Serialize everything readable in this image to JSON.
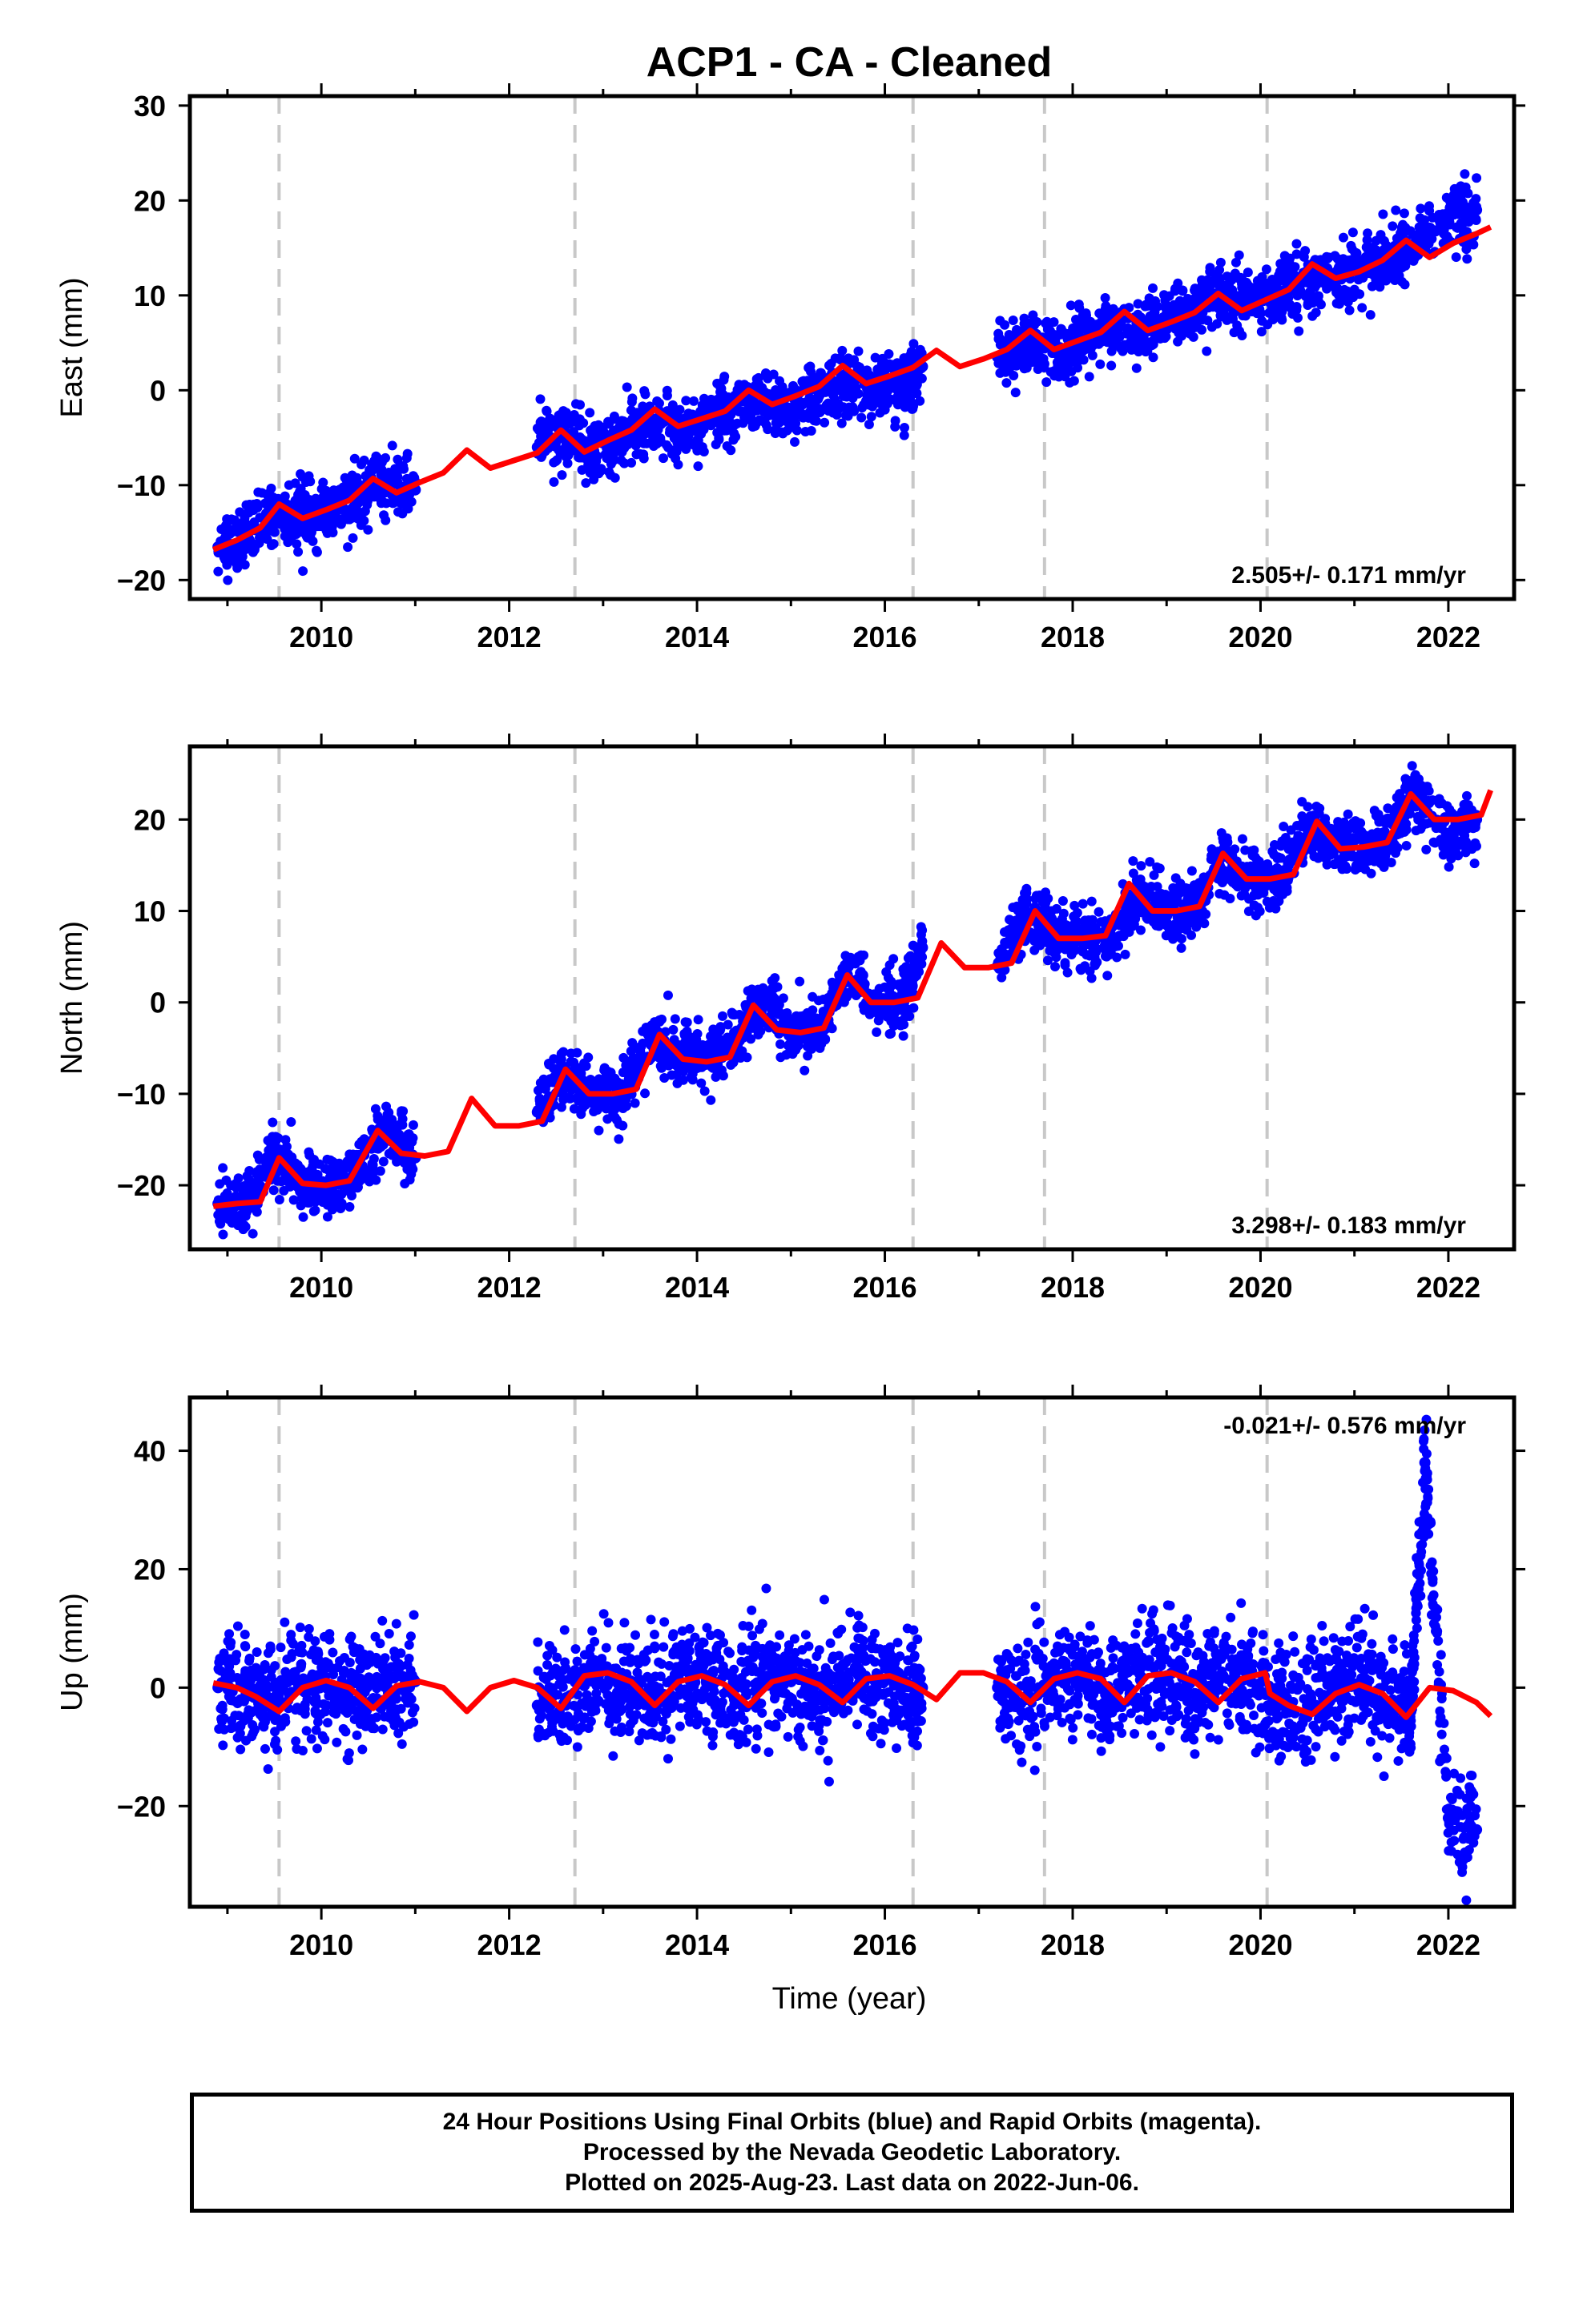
{
  "title": "ACP1  - CA - Cleaned",
  "xlabel": "Time (year)",
  "footer": {
    "line1": "24 Hour Positions Using Final Orbits (blue) and Rapid Orbits (magenta).",
    "line2": "Processed by the Nevada Geodetic Laboratory.",
    "line3": "Plotted on 2025-Aug-23. Last data on 2022-Jun-06."
  },
  "colors": {
    "data": "#0000ff",
    "model": "#ff0000",
    "event_lines": "#c8c8c8"
  },
  "chart_data": [
    {
      "type": "scatter",
      "component": "East",
      "ylabel": "East (mm)",
      "xlim": [
        2008.6,
        2022.7
      ],
      "ylim": [
        -22,
        31
      ],
      "xticks": [
        2010,
        2012,
        2014,
        2016,
        2018,
        2020,
        2022
      ],
      "yticks": [
        -20,
        -10,
        0,
        10,
        20,
        30
      ],
      "rate_label": "2.505+/- 0.171 mm/yr",
      "rate": 2.505,
      "event_lines": [
        2009.55,
        2012.7,
        2016.3,
        2017.7,
        2020.07
      ],
      "series": [
        {
          "name": "Final Orbits",
          "x": [
            2008.9,
            2009.2,
            2009.5,
            2009.8,
            2010.1,
            2010.4,
            2010.7,
            2011.0,
            2012.3,
            2012.6,
            2012.9,
            2013.2,
            2013.5,
            2013.8,
            2014.1,
            2014.4,
            2014.7,
            2015.0,
            2015.3,
            2015.6,
            2015.9,
            2016.2,
            2016.4,
            2017.2,
            2017.5,
            2017.8,
            2018.1,
            2018.4,
            2018.7,
            2019.0,
            2019.3,
            2019.6,
            2019.9,
            2020.2,
            2020.5,
            2020.8,
            2021.1,
            2021.4,
            2021.6,
            2022.0,
            2022.3
          ],
          "y": [
            -16.5,
            -15.5,
            -12.5,
            -13.5,
            -12.5,
            -11.5,
            -9.5,
            -10.5,
            -6.0,
            -4.5,
            -6.5,
            -5.0,
            -3.5,
            -4.5,
            -3.0,
            -2.0,
            -1.5,
            -2.5,
            -0.5,
            1.0,
            0.0,
            0.5,
            2.5,
            3.5,
            5.0,
            4.0,
            5.0,
            6.5,
            6.0,
            7.5,
            8.5,
            9.5,
            9.0,
            10.5,
            12.0,
            12.0,
            13.0,
            14.5,
            15.0,
            18.0,
            19.0
          ]
        }
      ],
      "model": {
        "x": [
          2008.85,
          2009.1,
          2009.35,
          2009.55,
          2009.8,
          2010.05,
          2010.3,
          2010.55,
          2010.8,
          2011.05,
          2011.3,
          2011.55,
          2011.8,
          2012.05,
          2012.3,
          2012.55,
          2012.8,
          2013.05,
          2013.3,
          2013.55,
          2013.8,
          2014.05,
          2014.3,
          2014.55,
          2014.8,
          2015.05,
          2015.3,
          2015.55,
          2015.8,
          2016.05,
          2016.3,
          2016.55,
          2016.8,
          2017.05,
          2017.3,
          2017.55,
          2017.8,
          2018.05,
          2018.3,
          2018.55,
          2018.8,
          2019.05,
          2019.3,
          2019.55,
          2019.8,
          2020.05,
          2020.3,
          2020.55,
          2020.8,
          2021.05,
          2021.3,
          2021.55,
          2021.8,
          2022.05,
          2022.3,
          2022.45
        ],
        "y": [
          -16.8,
          -15.8,
          -14.5,
          -12.0,
          -13.5,
          -12.6,
          -11.6,
          -9.3,
          -10.8,
          -9.7,
          -8.7,
          -6.3,
          -8.2,
          -7.4,
          -6.6,
          -4.2,
          -6.5,
          -5.3,
          -4.2,
          -2.0,
          -3.8,
          -3.0,
          -2.2,
          0.0,
          -1.5,
          -0.6,
          0.4,
          2.6,
          0.7,
          1.5,
          2.4,
          4.2,
          2.5,
          3.3,
          4.3,
          6.3,
          4.3,
          5.2,
          6.1,
          8.3,
          6.3,
          7.2,
          8.2,
          10.2,
          8.4,
          9.5,
          10.6,
          13.3,
          11.8,
          12.5,
          13.7,
          15.8,
          14.0,
          15.5,
          16.5,
          17.2
        ]
      }
    },
    {
      "type": "scatter",
      "component": "North",
      "ylabel": "North (mm)",
      "xlim": [
        2008.6,
        2022.7
      ],
      "ylim": [
        -27,
        28
      ],
      "xticks": [
        2010,
        2012,
        2014,
        2016,
        2018,
        2020,
        2022
      ],
      "yticks": [
        -20,
        -10,
        0,
        10,
        20
      ],
      "rate_label": "3.298+/- 0.183 mm/yr",
      "rate": 3.298,
      "event_lines": [
        2009.55,
        2012.7,
        2016.3,
        2017.7,
        2020.07
      ],
      "series": [
        {
          "name": "Final Orbits",
          "x": [
            2008.9,
            2009.2,
            2009.5,
            2009.8,
            2010.1,
            2010.4,
            2010.7,
            2011.0,
            2012.3,
            2012.6,
            2012.9,
            2013.2,
            2013.5,
            2013.8,
            2014.1,
            2014.4,
            2014.7,
            2015.0,
            2015.3,
            2015.6,
            2015.9,
            2016.2,
            2016.4,
            2017.2,
            2017.5,
            2017.8,
            2018.1,
            2018.4,
            2018.7,
            2019.0,
            2019.3,
            2019.6,
            2019.9,
            2020.2,
            2020.5,
            2020.8,
            2021.1,
            2021.4,
            2021.6,
            2022.0,
            2022.3
          ],
          "y": [
            -22.0,
            -22.0,
            -17.0,
            -20.0,
            -20.0,
            -18.0,
            -14.0,
            -17.0,
            -12.0,
            -8.0,
            -10.0,
            -10.0,
            -4.0,
            -6.0,
            -6.0,
            -4.0,
            0.0,
            -3.0,
            -3.0,
            3.0,
            0.0,
            0.0,
            6.0,
            4.0,
            10.0,
            7.0,
            7.0,
            7.0,
            12.0,
            10.0,
            10.0,
            16.0,
            13.0,
            14.0,
            19.0,
            17.0,
            17.0,
            18.0,
            23.0,
            18.0,
            20.0
          ]
        }
      ],
      "model": {
        "x": [
          2008.85,
          2009.1,
          2009.35,
          2009.55,
          2009.8,
          2010.05,
          2010.3,
          2010.6,
          2010.85,
          2011.1,
          2011.35,
          2011.6,
          2011.85,
          2012.1,
          2012.35,
          2012.6,
          2012.85,
          2013.1,
          2013.35,
          2013.6,
          2013.85,
          2014.1,
          2014.35,
          2014.6,
          2014.85,
          2015.1,
          2015.35,
          2015.6,
          2015.85,
          2016.1,
          2016.35,
          2016.6,
          2016.85,
          2017.1,
          2017.35,
          2017.6,
          2017.85,
          2018.1,
          2018.35,
          2018.6,
          2018.85,
          2019.1,
          2019.35,
          2019.6,
          2019.85,
          2020.1,
          2020.35,
          2020.6,
          2020.85,
          2021.1,
          2021.35,
          2021.6,
          2021.85,
          2022.1,
          2022.35,
          2022.45
        ],
        "y": [
          -22.3,
          -22.0,
          -21.8,
          -17.0,
          -19.8,
          -20.0,
          -19.5,
          -14.0,
          -16.5,
          -16.8,
          -16.3,
          -10.5,
          -13.5,
          -13.5,
          -13.0,
          -7.3,
          -10.0,
          -10.0,
          -9.5,
          -3.5,
          -6.2,
          -6.5,
          -6.0,
          -0.3,
          -3.0,
          -3.3,
          -2.8,
          3.0,
          0.0,
          0.0,
          0.5,
          6.5,
          3.8,
          3.8,
          4.3,
          10.0,
          7.0,
          7.0,
          7.3,
          13.0,
          10.0,
          10.0,
          10.5,
          16.3,
          13.5,
          13.5,
          14.0,
          19.8,
          16.8,
          17.0,
          17.5,
          22.8,
          20.0,
          20.0,
          20.5,
          23.2
        ]
      }
    },
    {
      "type": "scatter",
      "component": "Up",
      "ylabel": "Up (mm)",
      "xlim": [
        2008.6,
        2022.7
      ],
      "ylim": [
        -37,
        49
      ],
      "xticks": [
        2010,
        2012,
        2014,
        2016,
        2018,
        2020,
        2022
      ],
      "yticks": [
        -20,
        0,
        20,
        40
      ],
      "rate_label": "-0.021+/- 0.576 mm/yr",
      "rate": -0.021,
      "event_lines": [
        2009.55,
        2012.7,
        2016.3,
        2017.7,
        2020.07
      ],
      "series": [
        {
          "name": "Final Orbits",
          "x": [
            2008.9,
            2009.2,
            2009.5,
            2009.8,
            2010.1,
            2010.4,
            2010.7,
            2011.0,
            2012.3,
            2012.6,
            2012.9,
            2013.2,
            2013.5,
            2013.8,
            2014.1,
            2014.4,
            2014.7,
            2015.0,
            2015.3,
            2015.6,
            2015.9,
            2016.2,
            2016.4,
            2017.2,
            2017.5,
            2017.8,
            2018.1,
            2018.4,
            2018.7,
            2019.0,
            2019.3,
            2019.6,
            2019.9,
            2020.2,
            2020.5,
            2020.8,
            2021.1,
            2021.4,
            2021.6,
            2021.75,
            2022.0,
            2022.3
          ],
          "y": [
            0.0,
            -1.0,
            -3.0,
            1.0,
            0.0,
            -2.0,
            1.0,
            1.0,
            -3.0,
            -2.0,
            2.0,
            0.0,
            -2.0,
            2.0,
            1.0,
            -2.0,
            2.0,
            1.0,
            -2.0,
            2.0,
            1.0,
            -2.0,
            0.0,
            0.0,
            -2.0,
            2.0,
            2.0,
            -1.0,
            3.0,
            2.0,
            -1.0,
            2.0,
            1.0,
            -3.0,
            -3.0,
            1.0,
            1.0,
            -3.0,
            -4.0,
            38.0,
            -22.0,
            -24.0
          ]
        }
      ],
      "model": {
        "x": [
          2008.85,
          2009.1,
          2009.3,
          2009.55,
          2009.8,
          2010.05,
          2010.3,
          2010.55,
          2010.8,
          2011.05,
          2011.3,
          2011.55,
          2011.8,
          2012.05,
          2012.3,
          2012.55,
          2012.8,
          2013.05,
          2013.3,
          2013.55,
          2013.8,
          2014.05,
          2014.3,
          2014.55,
          2014.8,
          2015.05,
          2015.3,
          2015.55,
          2015.8,
          2016.05,
          2016.3,
          2016.55,
          2016.8,
          2017.05,
          2017.3,
          2017.55,
          2017.8,
          2018.05,
          2018.3,
          2018.55,
          2018.8,
          2019.05,
          2019.3,
          2019.55,
          2019.8,
          2020.05,
          2020.1,
          2020.3,
          2020.55,
          2020.8,
          2021.05,
          2021.3,
          2021.55,
          2021.8,
          2022.05,
          2022.3,
          2022.45
        ],
        "y": [
          0.8,
          0.0,
          -1.5,
          -4.0,
          0.0,
          1.2,
          0.0,
          -3.5,
          0.3,
          1.0,
          0.0,
          -4.0,
          0.0,
          1.2,
          0.0,
          -3.5,
          2.0,
          2.5,
          1.0,
          -3.0,
          1.0,
          2.0,
          0.5,
          -3.0,
          1.0,
          2.0,
          0.5,
          -2.5,
          1.5,
          2.0,
          0.5,
          -2.0,
          2.5,
          2.5,
          1.0,
          -2.5,
          1.5,
          2.5,
          1.5,
          -2.5,
          2.0,
          2.5,
          1.0,
          -2.5,
          1.5,
          2.5,
          -1.0,
          -3.0,
          -4.5,
          -1.0,
          0.5,
          -1.0,
          -5.0,
          0.0,
          -0.5,
          -2.5,
          -4.8
        ]
      }
    }
  ]
}
